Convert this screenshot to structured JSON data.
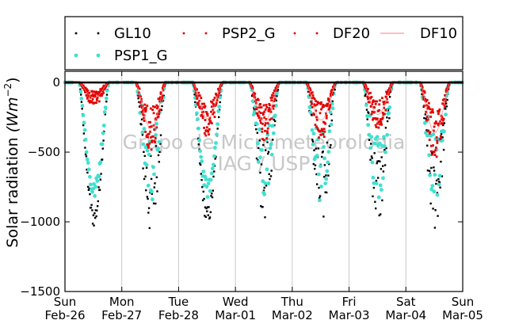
{
  "chart_data": {
    "type": "scatter",
    "title": "",
    "ylabel": "Solar radiation (W m^-2)",
    "ylabel_parts": {
      "text": "Solar radiation ",
      "unit": "(Wm",
      "exp": "−2",
      "close": ")"
    },
    "ylim": [
      -1500,
      80
    ],
    "yticks": [
      0,
      -500,
      -1000,
      -1500
    ],
    "ytick_labels": [
      "0",
      "−500",
      "−1000",
      "−1500"
    ],
    "xlim": [
      0,
      7
    ],
    "xticks": [
      0,
      1,
      2,
      3,
      4,
      5,
      6,
      7
    ],
    "xtick_labels": [
      [
        "Sun",
        "Feb-26"
      ],
      [
        "Mon",
        "Feb-27"
      ],
      [
        "Tue",
        "Feb-28"
      ],
      [
        "Wed",
        "Mar-01"
      ],
      [
        "Thu",
        "Mar-02"
      ],
      [
        "Fri",
        "Mar-03"
      ],
      [
        "Sat",
        "Mar-04"
      ],
      [
        "Sun",
        "Mar-05"
      ]
    ],
    "grid": "vertical",
    "legend": {
      "placement": "top",
      "ncol": 4
    },
    "watermark": [
      "Grupo de Micrometeorologia",
      "IAG / USP"
    ],
    "series": [
      {
        "name": "GL10",
        "marker": "square",
        "color": "#000000",
        "day_peaks": [
          -1040,
          -1130,
          -1030,
          -1000,
          -1080,
          -1050,
          -1080
        ]
      },
      {
        "name": "PSP2_G",
        "marker": "square",
        "color": "#e00000",
        "day_peaks": [
          -130,
          -360,
          -300,
          -300,
          -300,
          -250,
          -400
        ]
      },
      {
        "name": "DF20",
        "marker": "square",
        "color": "#e00000",
        "day_peaks": [
          -120,
          -350,
          -280,
          -290,
          -280,
          -240,
          -380
        ]
      },
      {
        "name": "DF10",
        "marker": "line",
        "color": "#ff7f7f",
        "day_peaks": [
          -110,
          -330,
          -260,
          -280,
          -270,
          -230,
          -360
        ]
      },
      {
        "name": "PSP1_G",
        "marker": "circle",
        "color": "#40e0d0",
        "day_peaks": [
          -840,
          -880,
          -830,
          -850,
          -880,
          -850,
          -880
        ]
      }
    ],
    "day_window": {
      "sunrise_h": 6.0,
      "sunset_h": 18.5
    },
    "night_value": 0
  }
}
